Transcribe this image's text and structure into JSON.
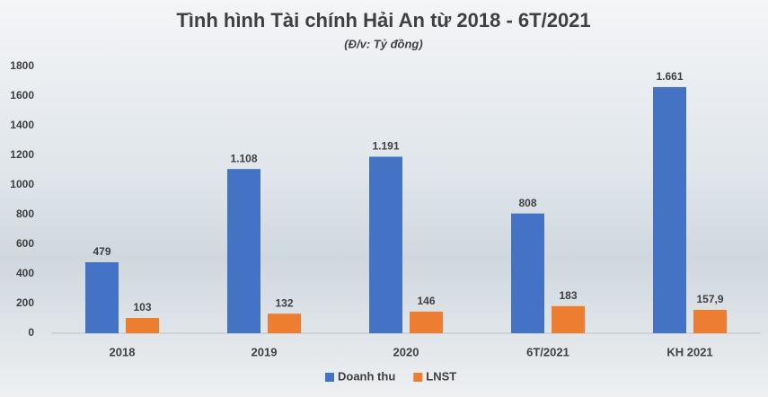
{
  "chart_data": {
    "type": "bar",
    "title": "Tình hình Tài chính Hải An từ 2018 - 6T/2021",
    "subtitle": "(Đ/v: Tỷ đồng)",
    "categories": [
      "2018",
      "2019",
      "2020",
      "6T/2021",
      "KH 2021"
    ],
    "series": [
      {
        "name": "Doanh thu",
        "color": "#4472c4",
        "values": [
          479,
          1108,
          1191,
          808,
          1661
        ],
        "value_labels": [
          "479",
          "1.108",
          "1.191",
          "808",
          "1.661"
        ]
      },
      {
        "name": "LNST",
        "color": "#ed7d31",
        "values": [
          103,
          132,
          146,
          183,
          157.9
        ],
        "value_labels": [
          "103",
          "132",
          "146",
          "183",
          "157,9"
        ]
      }
    ],
    "ylim": [
      0,
      1800
    ],
    "yticks": [
      0,
      200,
      400,
      600,
      800,
      1000,
      1200,
      1400,
      1600,
      1800
    ],
    "grid": false,
    "legend": "bottom"
  }
}
